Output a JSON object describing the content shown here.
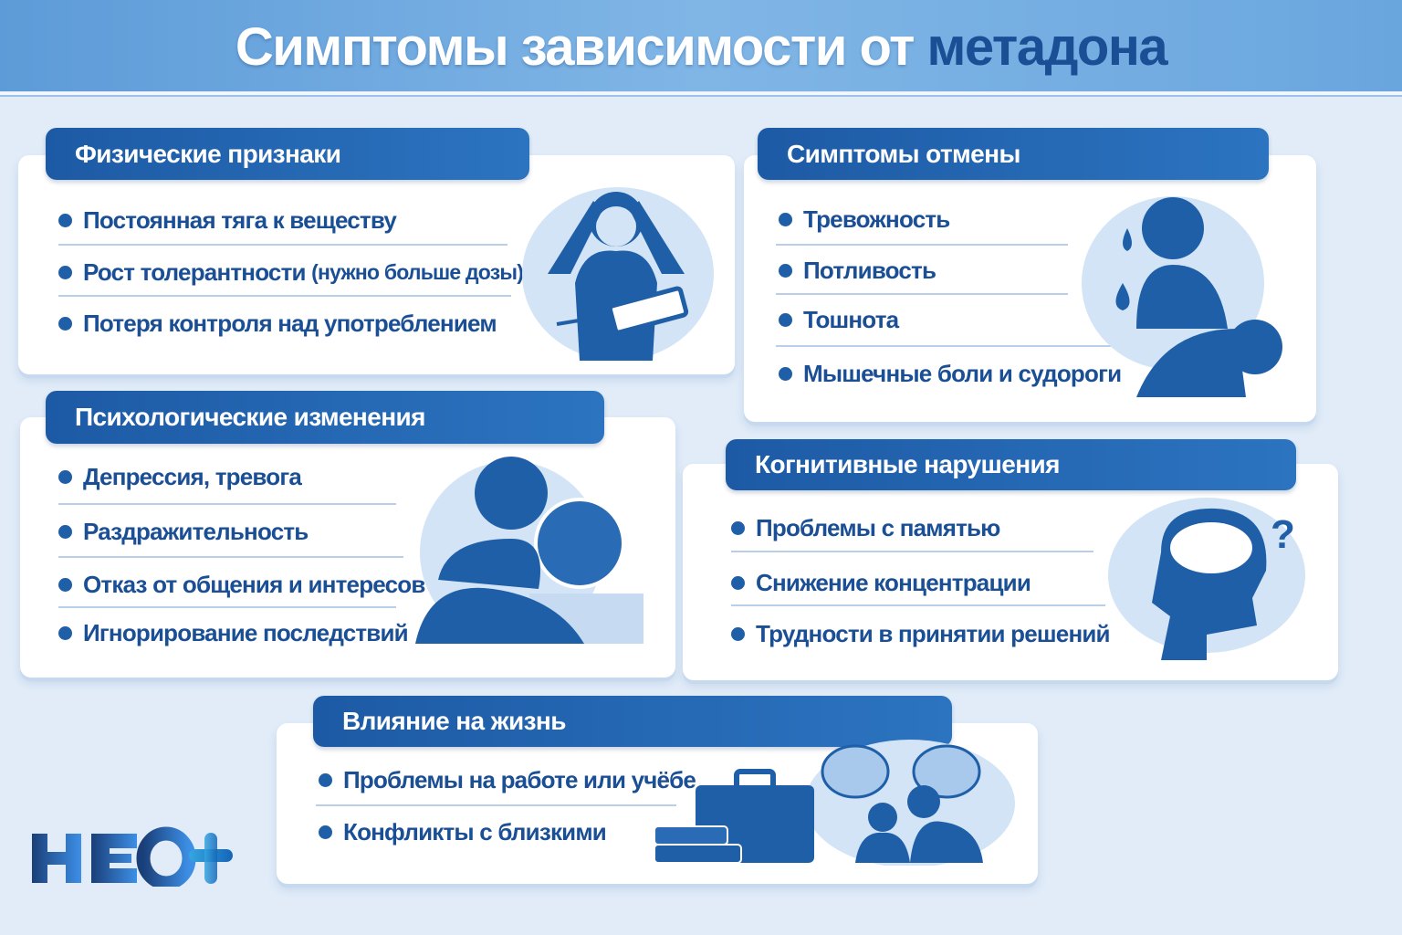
{
  "title": {
    "main": "Симптомы зависимости от ",
    "accent": "метадона"
  },
  "sections": {
    "physical": {
      "title": "Физические признаки",
      "items": [
        "Постоянная тяга к веществу",
        "Рост толерантности",
        "(нужно больше дозы)",
        "Потеря контроля над употреблением"
      ]
    },
    "withdrawal": {
      "title": "Симптомы отмены",
      "items": [
        "Тревожность",
        "Потливость",
        "Тошнота",
        "Мышечные боли и судороги"
      ]
    },
    "psych": {
      "title": "Психологические изменения",
      "items": [
        "Депрессия, тревога",
        "Раздражительность",
        "Отказ от общения и интересов",
        "Игнорирование последствий"
      ]
    },
    "cognitive": {
      "title": "Когнитивные нарушения",
      "items": [
        "Проблемы с памятью",
        "Снижение концентрации",
        "Трудности в принятии решений"
      ]
    },
    "life": {
      "title": "Влияние на жизнь",
      "items": [
        "Проблемы на работе или учёбе",
        "Конфликты с близкими"
      ]
    }
  },
  "logo": {
    "text": "НЕО+"
  },
  "colors": {
    "primary": "#1f5fa8",
    "text": "#1a4f95",
    "background": "#e1ecf8",
    "illustration_bg": "#d3e4f6"
  }
}
